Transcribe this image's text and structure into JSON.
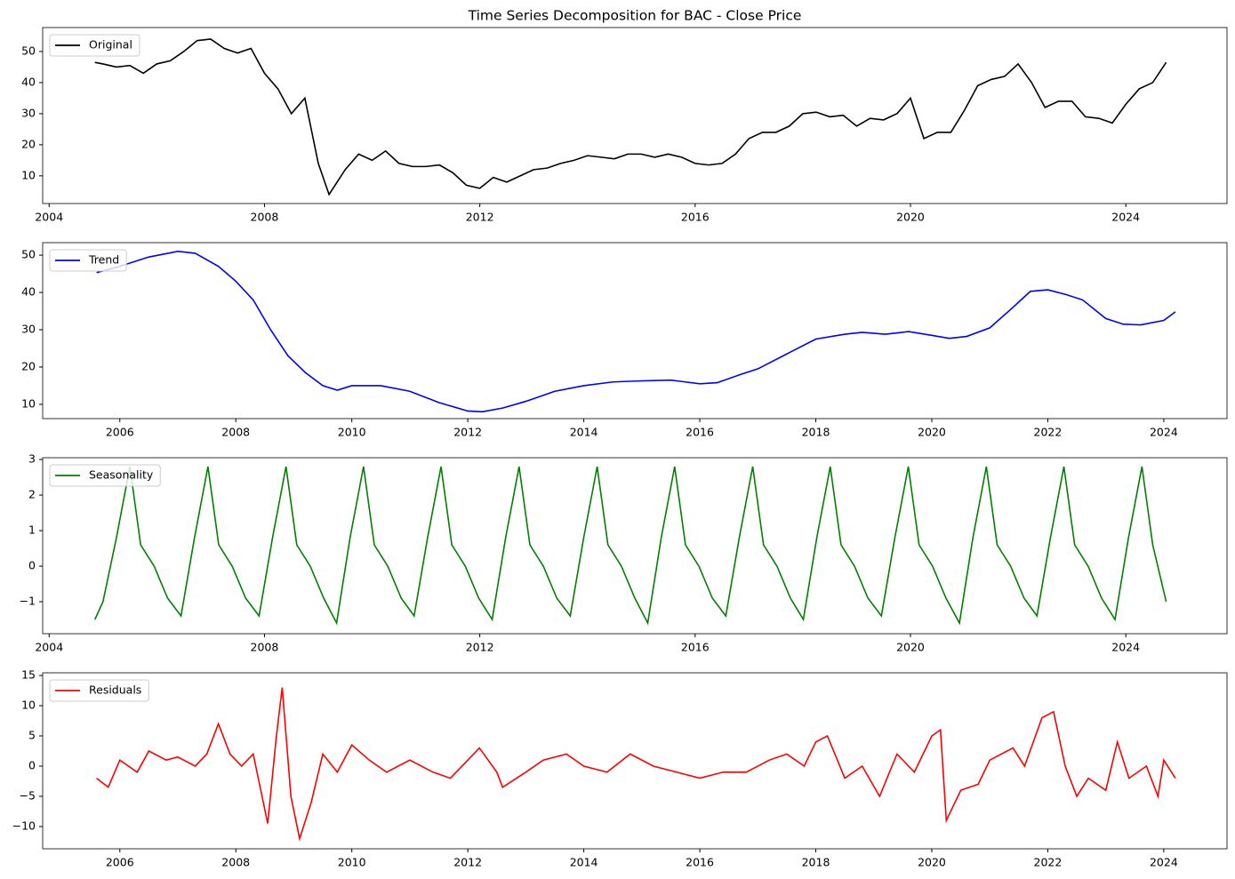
{
  "chart_data": [
    {
      "type": "line",
      "title": "Time Series Decomposition for BAC - Close Price",
      "legend": "upper left",
      "xlim": [
        2003.88,
        2025.88
      ],
      "xticks": [
        2004,
        2008,
        2012,
        2016,
        2020,
        2024
      ],
      "ylim": [
        1.1,
        57.7
      ],
      "yticks": [
        10,
        20,
        30,
        40,
        50
      ],
      "x": [
        2004.85,
        2005.0,
        2005.25,
        2005.5,
        2005.75,
        2006.0,
        2006.25,
        2006.5,
        2006.75,
        2007.0,
        2007.25,
        2007.5,
        2007.75,
        2008.0,
        2008.25,
        2008.5,
        2008.75,
        2009.0,
        2009.2,
        2009.5,
        2009.75,
        2010.0,
        2010.25,
        2010.5,
        2010.75,
        2011.0,
        2011.25,
        2011.5,
        2011.75,
        2012.0,
        2012.25,
        2012.5,
        2012.75,
        2013.0,
        2013.25,
        2013.5,
        2013.75,
        2014.0,
        2014.25,
        2014.5,
        2014.75,
        2015.0,
        2015.25,
        2015.5,
        2015.75,
        2016.0,
        2016.25,
        2016.5,
        2016.75,
        2017.0,
        2017.25,
        2017.5,
        2017.75,
        2018.0,
        2018.25,
        2018.5,
        2018.75,
        2019.0,
        2019.25,
        2019.5,
        2019.75,
        2020.0,
        2020.25,
        2020.5,
        2020.75,
        2021.0,
        2021.25,
        2021.5,
        2021.75,
        2022.0,
        2022.25,
        2022.5,
        2022.75,
        2023.0,
        2023.25,
        2023.5,
        2023.75,
        2024.0,
        2024.25,
        2024.5,
        2024.75
      ],
      "series": [
        {
          "name": "Original",
          "color": "#000000",
          "values": [
            46.5,
            46,
            45,
            45.5,
            43,
            46,
            47,
            50,
            53.5,
            54,
            51,
            49.5,
            51,
            43,
            38,
            30,
            35,
            14,
            4,
            12,
            17,
            15,
            18,
            14,
            13,
            13,
            13.5,
            11,
            7,
            6,
            9.5,
            8,
            10,
            12,
            12.5,
            14,
            15,
            16.5,
            16,
            15.5,
            17,
            17,
            16,
            17,
            16,
            14,
            13.5,
            14,
            17,
            22,
            24,
            24,
            26,
            30,
            30.5,
            29,
            29.5,
            26,
            28.5,
            28,
            30,
            35,
            22,
            24,
            24,
            31,
            39,
            41,
            42,
            46,
            40,
            32,
            34,
            34,
            29,
            28.5,
            27,
            33,
            38,
            40,
            46.5
          ]
        }
      ]
    },
    {
      "type": "line",
      "legend": "upper left",
      "xlim": [
        2004.67,
        2025.09
      ],
      "xticks": [
        2006,
        2008,
        2010,
        2012,
        2014,
        2016,
        2018,
        2020,
        2022,
        2024
      ],
      "ylim": [
        6.17,
        53.35
      ],
      "yticks": [
        10,
        20,
        30,
        40,
        50
      ],
      "x": [
        2005.6,
        2006,
        2006.5,
        2007,
        2007.3,
        2007.7,
        2008,
        2008.3,
        2008.6,
        2008.9,
        2009.2,
        2009.5,
        2009.75,
        2010,
        2010.5,
        2011,
        2011.5,
        2012,
        2012.25,
        2012.6,
        2013,
        2013.5,
        2014,
        2014.5,
        2015,
        2015.5,
        2016,
        2016.3,
        2016.7,
        2017,
        2017.5,
        2018,
        2018.5,
        2018.8,
        2019.2,
        2019.6,
        2020,
        2020.3,
        2020.6,
        2021,
        2021.4,
        2021.7,
        2022,
        2022.3,
        2022.6,
        2023,
        2023.3,
        2023.6,
        2024,
        2024.2
      ],
      "series": [
        {
          "name": "Trend",
          "color": "#0000ff",
          "values": [
            45.3,
            47,
            49.5,
            51,
            50.5,
            47,
            43,
            38,
            30,
            23,
            18.5,
            15,
            13.8,
            15,
            15,
            13.5,
            10.5,
            8.2,
            8,
            9,
            10.8,
            13.5,
            15,
            16,
            16.3,
            16.5,
            15.5,
            15.8,
            18,
            19.5,
            23.5,
            27.5,
            28.8,
            29.3,
            28.8,
            29.5,
            28.5,
            27.7,
            28.2,
            30.5,
            36,
            40.3,
            40.7,
            39.5,
            38,
            33,
            31.5,
            31.3,
            32.5,
            34.8
          ]
        }
      ]
    },
    {
      "type": "line",
      "legend": "upper left",
      "xlim": [
        2003.88,
        2025.88
      ],
      "xticks": [
        2004,
        2008,
        2012,
        2016,
        2020,
        2024
      ],
      "ylim": [
        -1.9,
        3.05
      ],
      "yticks": [
        {
          "value": -1,
          "label": "−1"
        },
        0,
        1,
        2,
        3
      ],
      "x": [
        2004.85,
        2005.0,
        2005.25,
        2005.5,
        2005.7,
        2005.95,
        2006.2,
        2006.45,
        2006.7,
        2006.95,
        2007.15,
        2007.4,
        2007.65,
        2007.9,
        2008.15,
        2008.4,
        2008.6,
        2008.85,
        2009.1,
        2009.34,
        2009.59,
        2009.84,
        2010.04,
        2010.29,
        2010.54,
        2010.78,
        2011.03,
        2011.28,
        2011.48,
        2011.73,
        2011.98,
        2012.23,
        2012.48,
        2012.73,
        2012.93,
        2013.18,
        2013.43,
        2013.68,
        2013.93,
        2014.18,
        2014.38,
        2014.63,
        2014.88,
        2015.12,
        2015.37,
        2015.62,
        2015.82,
        2016.07,
        2016.32,
        2016.57,
        2016.82,
        2017.07,
        2017.27,
        2017.52,
        2017.77,
        2018.01,
        2018.26,
        2018.51,
        2018.71,
        2018.96,
        2019.21,
        2019.46,
        2019.71,
        2019.96,
        2020.16,
        2020.41,
        2020.66,
        2020.91,
        2021.16,
        2021.41,
        2021.61,
        2021.86,
        2022.11,
        2022.35,
        2022.6,
        2022.85,
        2023.05,
        2023.3,
        2023.55,
        2023.8,
        2024.05,
        2024.3,
        2024.5,
        2024.75
      ],
      "series": [
        {
          "name": "Seasonality",
          "color": "#008000",
          "values": [
            -1.5,
            -1.0,
            0.8,
            2.8,
            0.6,
            0.0,
            -0.9,
            -1.4,
            0.8,
            2.8,
            0.6,
            0.0,
            -0.9,
            -1.4,
            0.8,
            2.8,
            0.6,
            0.0,
            -0.9,
            -1.6,
            0.8,
            2.8,
            0.6,
            0.0,
            -0.9,
            -1.4,
            0.8,
            2.8,
            0.6,
            0.0,
            -0.9,
            -1.5,
            0.8,
            2.8,
            0.6,
            0.0,
            -0.9,
            -1.4,
            0.8,
            2.8,
            0.6,
            0.0,
            -0.9,
            -1.6,
            0.8,
            2.8,
            0.6,
            0.0,
            -0.9,
            -1.4,
            0.8,
            2.8,
            0.6,
            0.0,
            -0.9,
            -1.5,
            0.8,
            2.8,
            0.6,
            0.0,
            -0.9,
            -1.4,
            0.8,
            2.8,
            0.6,
            0.0,
            -0.9,
            -1.6,
            0.8,
            2.8,
            0.6,
            0.0,
            -0.9,
            -1.4,
            0.8,
            2.8,
            0.6,
            0.0,
            -0.9,
            -1.5,
            0.8,
            2.8,
            0.6,
            -1.0
          ]
        }
      ]
    },
    {
      "type": "line",
      "legend": "upper left",
      "xlim": [
        2004.67,
        2025.09
      ],
      "xticks": [
        2006,
        2008,
        2010,
        2012,
        2014,
        2016,
        2018,
        2020,
        2022,
        2024
      ],
      "ylim": [
        -13.68,
        15.44
      ],
      "yticks": [
        {
          "value": -10,
          "label": "−10"
        },
        {
          "value": -5,
          "label": "−5"
        },
        0,
        5,
        10,
        15
      ],
      "x": [
        2005.6,
        2005.8,
        2006,
        2006.3,
        2006.5,
        2006.8,
        2007,
        2007.3,
        2007.5,
        2007.7,
        2007.9,
        2008.1,
        2008.3,
        2008.55,
        2008.7,
        2008.8,
        2008.95,
        2009.1,
        2009.3,
        2009.5,
        2009.75,
        2010,
        2010.3,
        2010.6,
        2011,
        2011.4,
        2011.7,
        2012,
        2012.2,
        2012.5,
        2012.6,
        2013,
        2013.3,
        2013.7,
        2014,
        2014.4,
        2014.8,
        2015.2,
        2015.6,
        2016,
        2016.4,
        2016.8,
        2017.2,
        2017.5,
        2017.8,
        2018,
        2018.2,
        2018.5,
        2018.8,
        2019.1,
        2019.4,
        2019.7,
        2020.0,
        2020.15,
        2020.25,
        2020.5,
        2020.8,
        2021,
        2021.4,
        2021.6,
        2021.9,
        2022.1,
        2022.3,
        2022.5,
        2022.7,
        2023,
        2023.2,
        2023.4,
        2023.7,
        2023.9,
        2024,
        2024.2
      ],
      "series": [
        {
          "name": "Residuals",
          "color": "#ff0000",
          "values": [
            -2,
            -3.5,
            1,
            -1,
            2.5,
            1,
            1.5,
            0,
            2,
            7,
            2,
            0,
            2,
            -9.5,
            5,
            13,
            -5,
            -12,
            -6,
            2,
            -1,
            3.5,
            1,
            -1,
            1,
            -1,
            -2,
            1,
            3,
            -1,
            -3.5,
            -1,
            1,
            2,
            0,
            -1,
            2,
            0,
            -1,
            -2,
            -1,
            -1,
            1,
            2,
            0,
            4,
            5,
            -2,
            0,
            -5,
            2,
            -1,
            5,
            6,
            -9,
            -4,
            -3,
            1,
            3,
            0,
            8,
            9,
            0,
            -5,
            -2,
            -4,
            4,
            -2,
            0,
            -5,
            1,
            -2
          ]
        }
      ]
    }
  ]
}
